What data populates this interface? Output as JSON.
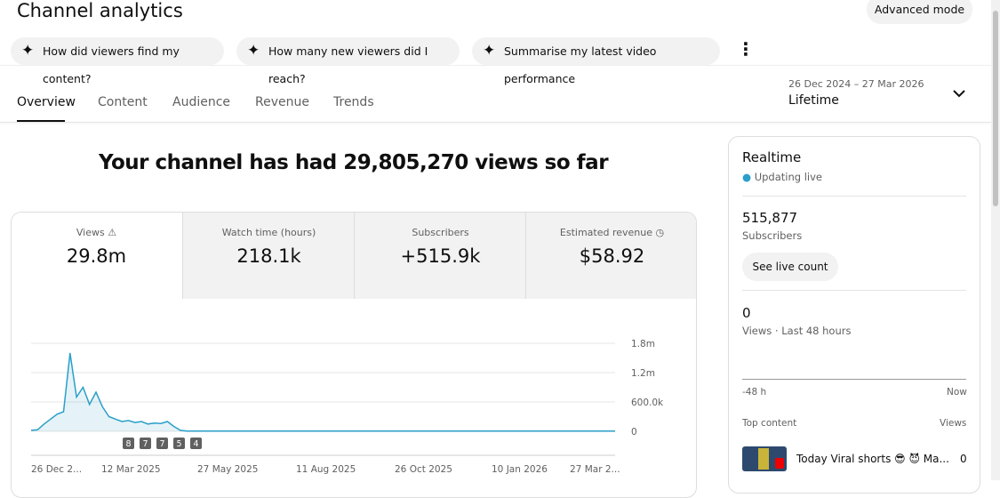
{
  "header": {
    "title": "Channel analytics",
    "advanced_button": "Advanced mode"
  },
  "suggestions": [
    "How did viewers find my content?",
    "How many new viewers did I reach?",
    "Summarise my latest video performance"
  ],
  "tabs": [
    "Overview",
    "Content",
    "Audience",
    "Revenue",
    "Trends"
  ],
  "active_tab": 0,
  "date_range": {
    "range": "26 Dec 2024 – 27 Mar 2026",
    "label": "Lifetime"
  },
  "headline": "Your channel has had 29,805,270 views so far",
  "metrics": [
    {
      "label": "Views",
      "value": "29.8m"
    },
    {
      "label": "Watch time (hours)",
      "value": "218.1k"
    },
    {
      "label": "Subscribers",
      "value": "+515.9k"
    },
    {
      "label": "Estimated revenue",
      "value": "$58.92"
    }
  ],
  "chart": {
    "type": "line",
    "color": "#2a9fc9",
    "values": [
      20000,
      30000,
      150000,
      250000,
      350000,
      400000,
      1600000,
      700000,
      900000,
      550000,
      800000,
      500000,
      300000,
      250000,
      200000,
      220000,
      180000,
      200000,
      150000,
      170000,
      160000,
      200000,
      100000,
      20000,
      5000,
      5000,
      5000,
      5000,
      5000,
      5000,
      5000,
      5000,
      5000,
      5000,
      5000,
      5000,
      5000,
      5000,
      5000,
      5000,
      5000,
      5000,
      5000,
      5000,
      5000,
      5000,
      5000,
      5000,
      5000,
      5000,
      5000,
      5000,
      5000,
      5000,
      5000,
      5000,
      5000,
      5000,
      5000,
      5000,
      5000,
      5000,
      5000,
      5000,
      5000,
      5000,
      5000,
      5000,
      5000,
      5000,
      5000,
      5000,
      5000,
      5000,
      5000,
      5000,
      5000,
      5000,
      5000,
      5000,
      5000,
      5000,
      5000,
      5000,
      5000,
      5000,
      5000,
      5000,
      5000,
      5000,
      5000
    ],
    "ylim": [
      0,
      1800000
    ],
    "yticks": [
      0,
      {
        "value": 600000,
        "label": "600.0k"
      },
      {
        "value": 1200000,
        "label": "1.2m"
      },
      {
        "value": 1800000,
        "label": "1.8m"
      }
    ],
    "xtick_labels": [
      "26 Dec 2...",
      "12 Mar 2025",
      "27 May 2025",
      "11 Aug 2025",
      "26 Oct 2025",
      "10 Jan 2026",
      "27 Mar 2..."
    ],
    "markers": [
      "8",
      "7",
      "7",
      "5",
      "4"
    ]
  },
  "realtime": {
    "title": "Realtime",
    "status": "Updating live",
    "subscribers": "515,877",
    "subscribers_label": "Subscribers",
    "button": "See live count",
    "views": "0",
    "views_label": "Views · Last 48 hours",
    "axis_start": "-48 h",
    "axis_end": "Now",
    "top_content": "Top content",
    "views_header": "Views",
    "item_title": "Today Viral shorts 😎 😈 Ma...",
    "item_views": "0"
  }
}
